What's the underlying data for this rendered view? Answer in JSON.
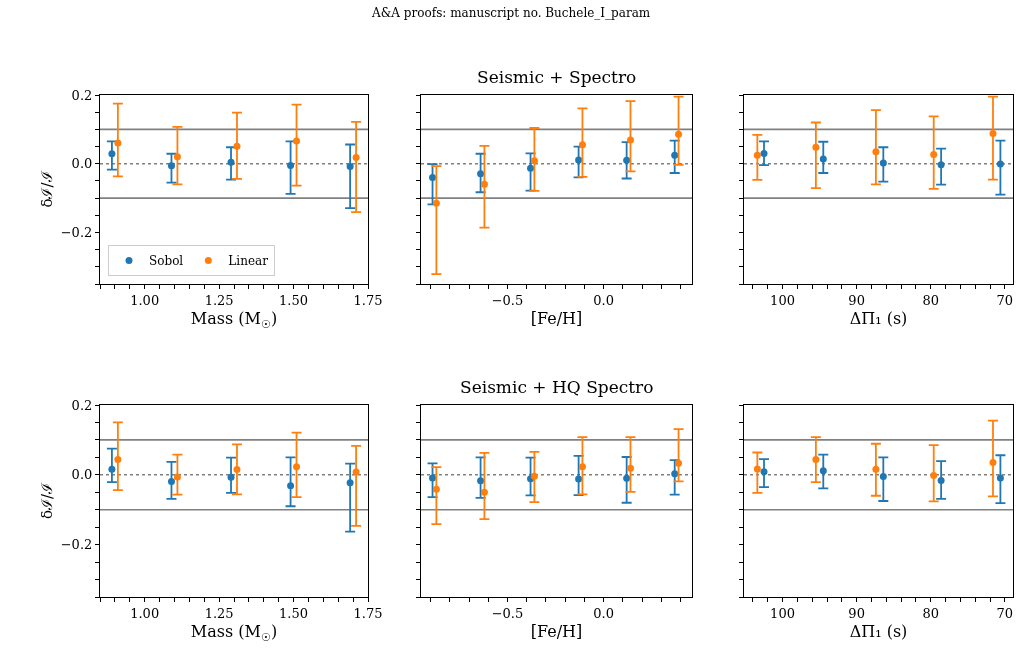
{
  "chart_data": [
    {
      "type": "scatter",
      "ylabel": "δℐ/ℐ",
      "xlabel": "Mass (M$_{☉}$)",
      "annotations": [
        "A&A proofs: manuscript no. Buchele_I_param"
      ],
      "marker": "circle",
      "legend": "bottom left",
      "grid": false,
      "xlim": [
        0.85,
        1.75
      ],
      "xticks": [
        {
          "value": 0.85,
          "label": null
        },
        {
          "value": 0.9,
          "label": null
        },
        {
          "value": 0.95,
          "label": null
        },
        {
          "value": 1.0,
          "label": "1.00"
        },
        {
          "value": 1.05,
          "label": null
        },
        {
          "value": 1.1,
          "label": null
        },
        {
          "value": 1.15,
          "label": null
        },
        {
          "value": 1.2,
          "label": null
        },
        {
          "value": 1.25,
          "label": "1.25"
        },
        {
          "value": 1.3,
          "label": null
        },
        {
          "value": 1.35,
          "label": null
        },
        {
          "value": 1.4,
          "label": null
        },
        {
          "value": 1.45,
          "label": null
        },
        {
          "value": 1.5,
          "label": "1.50"
        },
        {
          "value": 1.55,
          "label": null
        },
        {
          "value": 1.6,
          "label": null
        },
        {
          "value": 1.65,
          "label": null
        },
        {
          "value": 1.7,
          "label": null
        },
        {
          "value": 1.75,
          "label": "1.75"
        }
      ],
      "ylim": [
        -0.35,
        0.2
      ],
      "yticks": [
        {
          "value": -0.35,
          "label": null
        },
        {
          "value": -0.3,
          "label": null
        },
        {
          "value": -0.25,
          "label": null
        },
        {
          "value": -0.2,
          "label": "−0.2"
        },
        {
          "value": -0.15,
          "label": null
        },
        {
          "value": -0.1,
          "label": null
        },
        {
          "value": -0.05,
          "label": null
        },
        {
          "value": 0,
          "label": "0.0"
        },
        {
          "value": 0.05,
          "label": null
        },
        {
          "value": 0.1,
          "label": null
        },
        {
          "value": 0.15,
          "label": null
        },
        {
          "value": 0.2,
          "label": "0.2"
        }
      ],
      "ref_lines": [
        {
          "axis": "y",
          "value": 0.1,
          "color": "#808080",
          "line_style": "solid"
        },
        {
          "axis": "y",
          "value": -0.1,
          "color": "#808080",
          "line_style": "solid"
        },
        {
          "axis": "y",
          "value": 0,
          "color": "#808080",
          "line_style": "dotted"
        }
      ],
      "series": [
        {
          "name": "Sobol",
          "color": "#1f77b4",
          "x": [
            0.89,
            1.09,
            1.29,
            1.49,
            1.69
          ],
          "values": [
            0.029,
            -0.006,
            0.004,
            -0.005,
            -0.008
          ],
          "errors": [
            [
              -0.017,
              0.065
            ],
            [
              -0.055,
              0.029
            ],
            [
              -0.046,
              0.048
            ],
            [
              -0.088,
              0.065
            ],
            [
              -0.129,
              0.056
            ]
          ]
        },
        {
          "name": "Linear",
          "color": "#ff7f0e",
          "x": [
            0.91,
            1.11,
            1.31,
            1.51,
            1.71
          ],
          "values": [
            0.06,
            0.02,
            0.051,
            0.066,
            0.018
          ],
          "errors": [
            [
              -0.037,
              0.175
            ],
            [
              -0.06,
              0.107
            ],
            [
              -0.044,
              0.149
            ],
            [
              -0.064,
              0.172
            ],
            [
              -0.141,
              0.122
            ]
          ]
        }
      ]
    },
    {
      "type": "scatter",
      "title": "Seismic + Spectro",
      "xlabel": "[Fe/H]",
      "marker": "circle",
      "tick_labels": "x",
      "grid": false,
      "xlim": [
        -0.95,
        0.46
      ],
      "xticks": [
        {
          "value": -0.9,
          "label": null
        },
        {
          "value": -0.8,
          "label": null
        },
        {
          "value": -0.7,
          "label": null
        },
        {
          "value": -0.6,
          "label": null
        },
        {
          "value": -0.5,
          "label": "−0.5"
        },
        {
          "value": -0.4,
          "label": null
        },
        {
          "value": -0.3,
          "label": null
        },
        {
          "value": -0.2,
          "label": null
        },
        {
          "value": -0.1,
          "label": null
        },
        {
          "value": 0,
          "label": "0.0"
        },
        {
          "value": 0.1,
          "label": null
        },
        {
          "value": 0.2,
          "label": null
        },
        {
          "value": 0.3,
          "label": null
        },
        {
          "value": 0.4,
          "label": null
        }
      ],
      "ylim": [
        -0.35,
        0.2
      ],
      "yticks": [
        {
          "value": -0.35,
          "label": null
        },
        {
          "value": -0.3,
          "label": null
        },
        {
          "value": -0.25,
          "label": null
        },
        {
          "value": -0.2,
          "label": null
        },
        {
          "value": -0.15,
          "label": null
        },
        {
          "value": -0.1,
          "label": null
        },
        {
          "value": -0.05,
          "label": null
        },
        {
          "value": 0,
          "label": null
        },
        {
          "value": 0.05,
          "label": null
        },
        {
          "value": 0.1,
          "label": null
        },
        {
          "value": 0.15,
          "label": null
        },
        {
          "value": 0.2,
          "label": null
        }
      ],
      "ref_lines": [
        {
          "axis": "y",
          "value": 0.1,
          "color": "#808080",
          "line_style": "solid"
        },
        {
          "axis": "y",
          "value": -0.1,
          "color": "#808080",
          "line_style": "solid"
        },
        {
          "axis": "y",
          "value": 0,
          "color": "#808080",
          "line_style": "dotted"
        }
      ],
      "series": [
        {
          "color": "#1f77b4",
          "x": [
            -0.89,
            -0.64,
            -0.38,
            -0.13,
            0.12,
            0.37
          ],
          "values": [
            -0.04,
            -0.029,
            -0.013,
            0.011,
            0.01,
            0.025
          ],
          "errors": [
            [
              -0.118,
              -0.001
            ],
            [
              -0.083,
              0.029
            ],
            [
              -0.078,
              0.03
            ],
            [
              -0.04,
              0.05
            ],
            [
              -0.043,
              0.063
            ],
            [
              -0.027,
              0.067
            ]
          ]
        },
        {
          "color": "#ff7f0e",
          "x": [
            -0.87,
            -0.62,
            -0.36,
            -0.11,
            0.14,
            0.39
          ],
          "values": [
            -0.115,
            -0.06,
            0.009,
            0.055,
            0.069,
            0.086
          ],
          "errors": [
            [
              -0.321,
              -0.007
            ],
            [
              -0.186,
              0.052
            ],
            [
              -0.079,
              0.104
            ],
            [
              -0.038,
              0.161
            ],
            [
              -0.022,
              0.182
            ],
            [
              -0.003,
              0.195
            ]
          ]
        }
      ]
    },
    {
      "type": "scatter",
      "xlabel": "ΔΠ₁ (s)",
      "marker": "circle",
      "tick_labels": "x",
      "grid": false,
      "xlim": [
        105.2,
        68.9
      ],
      "xticks": [
        {
          "value": 104,
          "label": null
        },
        {
          "value": 102,
          "label": null
        },
        {
          "value": 100,
          "label": "100"
        },
        {
          "value": 98,
          "label": null
        },
        {
          "value": 96,
          "label": null
        },
        {
          "value": 94,
          "label": null
        },
        {
          "value": 92,
          "label": null
        },
        {
          "value": 90,
          "label": "90"
        },
        {
          "value": 88,
          "label": null
        },
        {
          "value": 86,
          "label": null
        },
        {
          "value": 84,
          "label": null
        },
        {
          "value": 82,
          "label": null
        },
        {
          "value": 80,
          "label": "80"
        },
        {
          "value": 78,
          "label": null
        },
        {
          "value": 76,
          "label": null
        },
        {
          "value": 74,
          "label": null
        },
        {
          "value": 72,
          "label": null
        },
        {
          "value": 70,
          "label": "70"
        }
      ],
      "ylim": [
        -0.35,
        0.2
      ],
      "yticks": [
        {
          "value": -0.35,
          "label": null
        },
        {
          "value": -0.3,
          "label": null
        },
        {
          "value": -0.25,
          "label": null
        },
        {
          "value": -0.2,
          "label": null
        },
        {
          "value": -0.15,
          "label": null
        },
        {
          "value": -0.1,
          "label": null
        },
        {
          "value": -0.05,
          "label": null
        },
        {
          "value": 0,
          "label": null
        },
        {
          "value": 0.05,
          "label": null
        },
        {
          "value": 0.1,
          "label": null
        },
        {
          "value": 0.15,
          "label": null
        },
        {
          "value": 0.2,
          "label": null
        }
      ],
      "ref_lines": [
        {
          "axis": "y",
          "value": 0.1,
          "color": "#808080",
          "line_style": "solid"
        },
        {
          "axis": "y",
          "value": -0.1,
          "color": "#808080",
          "line_style": "solid"
        },
        {
          "axis": "y",
          "value": 0,
          "color": "#808080",
          "line_style": "dotted"
        }
      ],
      "series": [
        {
          "color": "#1f77b4",
          "x": [
            102.5,
            94.5,
            86.4,
            78.6,
            70.6
          ],
          "values": [
            0.03,
            0.014,
            0.002,
            -0.003,
            -0.001
          ],
          "errors": [
            [
              -0.004,
              0.065
            ],
            [
              -0.027,
              0.064
            ],
            [
              -0.052,
              0.048
            ],
            [
              -0.061,
              0.044
            ],
            [
              -0.09,
              0.067
            ]
          ]
        },
        {
          "color": "#ff7f0e",
          "x": [
            103.4,
            95.5,
            87.4,
            79.6,
            71.6
          ],
          "values": [
            0.025,
            0.048,
            0.035,
            0.027,
            0.088
          ],
          "errors": [
            [
              -0.047,
              0.084
            ],
            [
              -0.071,
              0.12
            ],
            [
              -0.06,
              0.156
            ],
            [
              -0.073,
              0.138
            ],
            [
              -0.046,
              0.195
            ]
          ]
        }
      ]
    },
    {
      "type": "scatter",
      "ylabel": "δℐ/ℐ",
      "xlabel": "Mass (M$_{☉}$)",
      "marker": "circle",
      "grid": false,
      "xlim": [
        0.85,
        1.75
      ],
      "xticks": [
        {
          "value": 0.85,
          "label": null
        },
        {
          "value": 0.9,
          "label": null
        },
        {
          "value": 0.95,
          "label": null
        },
        {
          "value": 1.0,
          "label": "1.00"
        },
        {
          "value": 1.05,
          "label": null
        },
        {
          "value": 1.1,
          "label": null
        },
        {
          "value": 1.15,
          "label": null
        },
        {
          "value": 1.2,
          "label": null
        },
        {
          "value": 1.25,
          "label": "1.25"
        },
        {
          "value": 1.3,
          "label": null
        },
        {
          "value": 1.35,
          "label": null
        },
        {
          "value": 1.4,
          "label": null
        },
        {
          "value": 1.45,
          "label": null
        },
        {
          "value": 1.5,
          "label": "1.50"
        },
        {
          "value": 1.55,
          "label": null
        },
        {
          "value": 1.6,
          "label": null
        },
        {
          "value": 1.65,
          "label": null
        },
        {
          "value": 1.7,
          "label": null
        },
        {
          "value": 1.75,
          "label": "1.75"
        }
      ],
      "ylim": [
        -0.35,
        0.2
      ],
      "yticks": [
        {
          "value": -0.35,
          "label": null
        },
        {
          "value": -0.3,
          "label": null
        },
        {
          "value": -0.25,
          "label": null
        },
        {
          "value": -0.2,
          "label": "−0.2"
        },
        {
          "value": -0.15,
          "label": null
        },
        {
          "value": -0.1,
          "label": null
        },
        {
          "value": -0.05,
          "label": null
        },
        {
          "value": 0,
          "label": "0.0"
        },
        {
          "value": 0.05,
          "label": null
        },
        {
          "value": 0.1,
          "label": null
        },
        {
          "value": 0.15,
          "label": null
        },
        {
          "value": 0.2,
          "label": "0.2"
        }
      ],
      "ref_lines": [
        {
          "axis": "y",
          "value": 0.1,
          "color": "#808080",
          "line_style": "solid"
        },
        {
          "axis": "y",
          "value": -0.1,
          "color": "#808080",
          "line_style": "solid"
        },
        {
          "axis": "y",
          "value": 0,
          "color": "#808080",
          "line_style": "dotted"
        }
      ],
      "series": [
        {
          "color": "#1f77b4",
          "x": [
            0.89,
            1.09,
            1.29,
            1.49,
            1.69
          ],
          "values": [
            0.016,
            -0.019,
            -0.007,
            -0.031,
            -0.023
          ],
          "errors": [
            [
              -0.021,
              0.075
            ],
            [
              -0.069,
              0.037
            ],
            [
              -0.052,
              0.049
            ],
            [
              -0.09,
              0.05
            ],
            [
              -0.163,
              0.032
            ]
          ]
        },
        {
          "color": "#ff7f0e",
          "x": [
            0.91,
            1.11,
            1.31,
            1.51,
            1.71
          ],
          "values": [
            0.044,
            -0.006,
            0.015,
            0.023,
            0.008
          ],
          "errors": [
            [
              -0.044,
              0.15
            ],
            [
              -0.057,
              0.058
            ],
            [
              -0.056,
              0.087
            ],
            [
              -0.064,
              0.121
            ],
            [
              -0.146,
              0.083
            ]
          ]
        }
      ]
    },
    {
      "type": "scatter",
      "title": "Seismic + HQ Spectro",
      "xlabel": "[Fe/H]",
      "marker": "circle",
      "tick_labels": "x",
      "grid": false,
      "xlim": [
        -0.95,
        0.46
      ],
      "xticks": [
        {
          "value": -0.9,
          "label": null
        },
        {
          "value": -0.8,
          "label": null
        },
        {
          "value": -0.7,
          "label": null
        },
        {
          "value": -0.6,
          "label": null
        },
        {
          "value": -0.5,
          "label": "−0.5"
        },
        {
          "value": -0.4,
          "label": null
        },
        {
          "value": -0.3,
          "label": null
        },
        {
          "value": -0.2,
          "label": null
        },
        {
          "value": -0.1,
          "label": null
        },
        {
          "value": 0,
          "label": "0.0"
        },
        {
          "value": 0.1,
          "label": null
        },
        {
          "value": 0.2,
          "label": null
        },
        {
          "value": 0.3,
          "label": null
        },
        {
          "value": 0.4,
          "label": null
        }
      ],
      "ylim": [
        -0.35,
        0.2
      ],
      "yticks": [
        {
          "value": -0.35,
          "label": null
        },
        {
          "value": -0.3,
          "label": null
        },
        {
          "value": -0.25,
          "label": null
        },
        {
          "value": -0.2,
          "label": null
        },
        {
          "value": -0.15,
          "label": null
        },
        {
          "value": -0.1,
          "label": null
        },
        {
          "value": -0.05,
          "label": null
        },
        {
          "value": 0,
          "label": null
        },
        {
          "value": 0.05,
          "label": null
        },
        {
          "value": 0.1,
          "label": null
        },
        {
          "value": 0.15,
          "label": null
        },
        {
          "value": 0.2,
          "label": null
        }
      ],
      "ref_lines": [
        {
          "axis": "y",
          "value": 0.1,
          "color": "#808080",
          "line_style": "solid"
        },
        {
          "axis": "y",
          "value": -0.1,
          "color": "#808080",
          "line_style": "solid"
        },
        {
          "axis": "y",
          "value": 0,
          "color": "#808080",
          "line_style": "dotted"
        }
      ],
      "series": [
        {
          "color": "#1f77b4",
          "x": [
            -0.89,
            -0.64,
            -0.38,
            -0.13,
            0.12,
            0.37
          ],
          "values": [
            -0.009,
            -0.017,
            -0.011,
            -0.012,
            -0.01,
            0.003
          ],
          "errors": [
            [
              -0.064,
              0.033
            ],
            [
              -0.066,
              0.05
            ],
            [
              -0.059,
              0.049
            ],
            [
              -0.058,
              0.054
            ],
            [
              -0.08,
              0.051
            ],
            [
              -0.057,
              0.042
            ]
          ]
        },
        {
          "color": "#ff7f0e",
          "x": [
            -0.87,
            -0.62,
            -0.36,
            -0.11,
            0.14,
            0.39
          ],
          "values": [
            -0.041,
            -0.05,
            -0.004,
            0.023,
            0.019,
            0.033
          ],
          "errors": [
            [
              -0.141,
              0.022
            ],
            [
              -0.127,
              0.063
            ],
            [
              -0.078,
              0.066
            ],
            [
              -0.056,
              0.108
            ],
            [
              -0.049,
              0.108
            ],
            [
              -0.019,
              0.131
            ]
          ]
        }
      ]
    },
    {
      "type": "scatter",
      "xlabel": "ΔΠ₁ (s)",
      "marker": "circle",
      "tick_labels": "x",
      "grid": false,
      "xlim": [
        105.2,
        68.9
      ],
      "xticks": [
        {
          "value": 104,
          "label": null
        },
        {
          "value": 102,
          "label": null
        },
        {
          "value": 100,
          "label": "100"
        },
        {
          "value": 98,
          "label": null
        },
        {
          "value": 96,
          "label": null
        },
        {
          "value": 94,
          "label": null
        },
        {
          "value": 92,
          "label": null
        },
        {
          "value": 90,
          "label": "90"
        },
        {
          "value": 88,
          "label": null
        },
        {
          "value": 86,
          "label": null
        },
        {
          "value": 84,
          "label": null
        },
        {
          "value": 82,
          "label": null
        },
        {
          "value": 80,
          "label": "80"
        },
        {
          "value": 78,
          "label": null
        },
        {
          "value": 76,
          "label": null
        },
        {
          "value": 74,
          "label": null
        },
        {
          "value": 72,
          "label": null
        },
        {
          "value": 70,
          "label": "70"
        }
      ],
      "ylim": [
        -0.35,
        0.2
      ],
      "yticks": [
        {
          "value": -0.35,
          "label": null
        },
        {
          "value": -0.3,
          "label": null
        },
        {
          "value": -0.25,
          "label": null
        },
        {
          "value": -0.2,
          "label": null
        },
        {
          "value": -0.15,
          "label": null
        },
        {
          "value": -0.1,
          "label": null
        },
        {
          "value": -0.05,
          "label": null
        },
        {
          "value": 0,
          "label": null
        },
        {
          "value": 0.05,
          "label": null
        },
        {
          "value": 0.1,
          "label": null
        },
        {
          "value": 0.15,
          "label": null
        },
        {
          "value": 0.2,
          "label": null
        }
      ],
      "ref_lines": [
        {
          "axis": "y",
          "value": 0.1,
          "color": "#808080",
          "line_style": "solid"
        },
        {
          "axis": "y",
          "value": -0.1,
          "color": "#808080",
          "line_style": "solid"
        },
        {
          "axis": "y",
          "value": 0,
          "color": "#808080",
          "line_style": "dotted"
        }
      ],
      "series": [
        {
          "color": "#1f77b4",
          "x": [
            102.5,
            94.5,
            86.4,
            78.6,
            70.6
          ],
          "values": [
            0.009,
            0.012,
            -0.005,
            -0.016,
            -0.009
          ],
          "errors": [
            [
              -0.035,
              0.045
            ],
            [
              -0.039,
              0.058
            ],
            [
              -0.075,
              0.05
            ],
            [
              -0.069,
              0.039
            ],
            [
              -0.081,
              0.056
            ]
          ]
        },
        {
          "color": "#ff7f0e",
          "x": [
            103.4,
            95.5,
            87.4,
            79.6,
            71.6
          ],
          "values": [
            0.017,
            0.044,
            0.016,
            -0.002,
            0.035
          ],
          "errors": [
            [
              -0.052,
              0.064
            ],
            [
              -0.021,
              0.108
            ],
            [
              -0.06,
              0.089
            ],
            [
              -0.076,
              0.085
            ],
            [
              -0.062,
              0.155
            ]
          ]
        }
      ]
    }
  ]
}
